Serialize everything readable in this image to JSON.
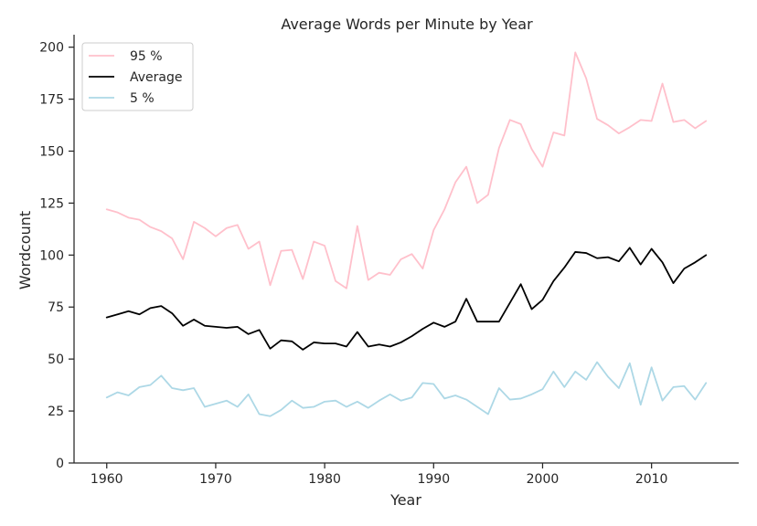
{
  "chart_data": {
    "type": "line",
    "title": "Average Words per Minute by Year",
    "xlabel": "Year",
    "ylabel": "Wordcount",
    "xlim": [
      1957,
      2018
    ],
    "ylim": [
      0,
      206
    ],
    "xticks": [
      1960,
      1970,
      1980,
      1990,
      2000,
      2010
    ],
    "yticks": [
      0,
      25,
      50,
      75,
      100,
      125,
      150,
      175,
      200
    ],
    "grid": false,
    "legend_position": "top-left",
    "x": [
      1960,
      1961,
      1962,
      1963,
      1964,
      1965,
      1966,
      1967,
      1968,
      1969,
      1970,
      1971,
      1972,
      1973,
      1974,
      1975,
      1976,
      1977,
      1978,
      1979,
      1980,
      1981,
      1982,
      1983,
      1984,
      1985,
      1986,
      1987,
      1988,
      1989,
      1990,
      1991,
      1992,
      1993,
      1994,
      1995,
      1996,
      1997,
      1998,
      1999,
      2000,
      2001,
      2002,
      2003,
      2004,
      2005,
      2006,
      2007,
      2008,
      2009,
      2010,
      2011,
      2012,
      2013,
      2014,
      2015
    ],
    "series": [
      {
        "name": "95 %",
        "color": "#ffc0cb",
        "values": [
          122,
          120.5,
          118,
          117,
          113.5,
          111.5,
          108,
          98,
          116,
          113,
          109,
          113,
          114.5,
          103,
          106.5,
          85.5,
          102,
          102.5,
          88.5,
          106.5,
          104.5,
          87.5,
          84,
          114,
          88,
          91.5,
          90.5,
          98,
          100.5,
          93.5,
          112,
          122,
          135,
          142.5,
          125,
          129,
          151.5,
          165,
          163,
          151,
          142.5,
          159,
          157.5,
          197.5,
          185,
          165.5,
          162.5,
          158.5,
          161.5,
          165,
          164.5,
          182.5,
          164,
          165,
          161,
          164.5
        ]
      },
      {
        "name": "Average",
        "color": "#000000",
        "values": [
          70,
          71.5,
          73,
          71.5,
          74.5,
          75.5,
          72,
          66,
          69,
          66,
          65.5,
          65,
          65.5,
          62,
          64,
          55,
          59,
          58.5,
          54.5,
          58,
          57.5,
          57.5,
          56,
          63,
          56,
          57,
          56,
          58,
          61,
          64.5,
          67.5,
          65.5,
          68,
          79,
          68,
          68,
          68,
          77,
          86,
          74,
          78.5,
          87.5,
          94,
          101.5,
          101,
          98.5,
          99,
          97,
          103.5,
          95.5,
          103,
          96.5,
          86.5,
          93.5,
          96.5,
          100
        ]
      },
      {
        "name": "5 %",
        "color": "#add8e6",
        "values": [
          31.5,
          34,
          32.5,
          36.5,
          37.5,
          42,
          36,
          35,
          36,
          27,
          28.5,
          30,
          27,
          33,
          23.5,
          22.5,
          25.5,
          30,
          26.5,
          27,
          29.5,
          30,
          27,
          29.5,
          26.5,
          30,
          33,
          30,
          31.5,
          38.5,
          38,
          31,
          32.5,
          30.5,
          27,
          23.5,
          36,
          30.5,
          31,
          33,
          35.5,
          44,
          36.5,
          44,
          40,
          48.5,
          41.5,
          36,
          48,
          28,
          46,
          30,
          36.5,
          37,
          30.5,
          38.5
        ]
      }
    ]
  }
}
